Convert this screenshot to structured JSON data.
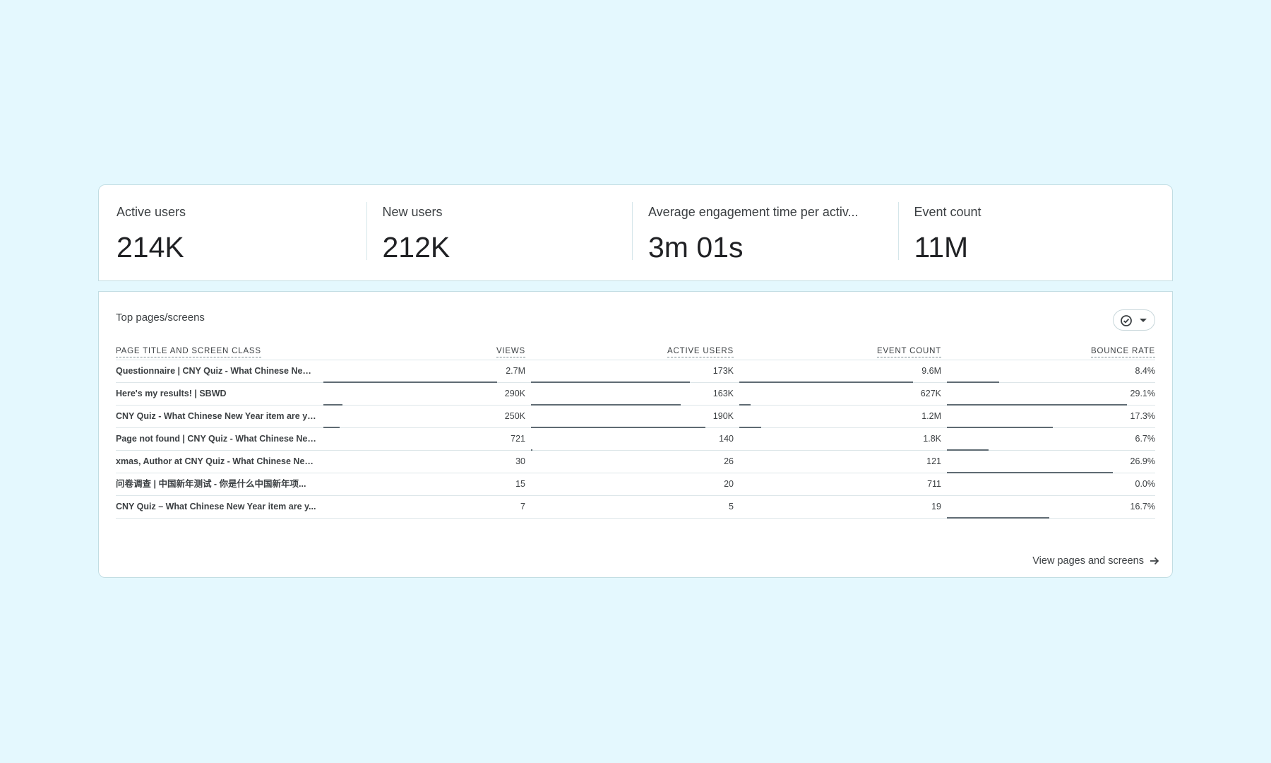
{
  "metrics": [
    {
      "label": "Active users",
      "value": "214K"
    },
    {
      "label": "New users",
      "value": "212K"
    },
    {
      "label": "Average engagement time per activ...",
      "value": "3m 01s"
    },
    {
      "label": "Event count",
      "value": "11M"
    }
  ],
  "table": {
    "title": "Top pages/screens",
    "compare_icon": "check-circle-icon",
    "headers": {
      "title": "PAGE TITLE AND SCREEN CLASS",
      "views": "VIEWS",
      "active_users": "ACTIVE USERS",
      "event_count": "EVENT COUNT",
      "bounce_rate": "BOUNCE RATE"
    },
    "rows": [
      {
        "title": "Questionnaire | CNY Quiz - What Chinese New ...",
        "views": "2.7M",
        "active_users": "173K",
        "event_count": "9.6M",
        "bounce_rate": "8.4%",
        "views_frac": 1.0,
        "users_frac": 0.91,
        "events_frac": 1.0,
        "bounce_frac": 0.29
      },
      {
        "title": "Here's my results! | SBWD",
        "views": "290K",
        "active_users": "163K",
        "event_count": "627K",
        "bounce_rate": "29.1%",
        "views_frac": 0.11,
        "users_frac": 0.86,
        "events_frac": 0.065,
        "bounce_frac": 1.0
      },
      {
        "title": "CNY Quiz - What Chinese New Year item are yo...",
        "views": "250K",
        "active_users": "190K",
        "event_count": "1.2M",
        "bounce_rate": "17.3%",
        "views_frac": 0.095,
        "users_frac": 1.0,
        "events_frac": 0.125,
        "bounce_frac": 0.59
      },
      {
        "title": "Page not found | CNY Quiz - What Chinese New...",
        "views": "721",
        "active_users": "140",
        "event_count": "1.8K",
        "bounce_rate": "6.7%",
        "views_frac": 0.0,
        "users_frac": 0.004,
        "events_frac": 0.0,
        "bounce_frac": 0.23
      },
      {
        "title": "xmas, Author at CNY Quiz - What Chinese New ...",
        "views": "30",
        "active_users": "26",
        "event_count": "121",
        "bounce_rate": "26.9%",
        "views_frac": 0.0,
        "users_frac": 0.0,
        "events_frac": 0.0,
        "bounce_frac": 0.92
      },
      {
        "title": "问卷调查 | 中国新年测试 - 你是什么中国新年项...",
        "views": "15",
        "active_users": "20",
        "event_count": "711",
        "bounce_rate": "0.0%",
        "views_frac": 0.0,
        "users_frac": 0.0,
        "events_frac": 0.0,
        "bounce_frac": 0.0
      },
      {
        "title": "CNY Quiz – What Chinese New Year item are y...",
        "views": "7",
        "active_users": "5",
        "event_count": "19",
        "bounce_rate": "16.7%",
        "views_frac": 0.0,
        "users_frac": 0.0,
        "events_frac": 0.0,
        "bounce_frac": 0.57
      }
    ],
    "footer_link": "View pages and screens",
    "footer_icon": "arrow-right-icon"
  },
  "colors": {
    "background": "#e4f8fe",
    "card": "#ffffff",
    "bar": "#5f6b73",
    "border": "#c2dde3"
  }
}
